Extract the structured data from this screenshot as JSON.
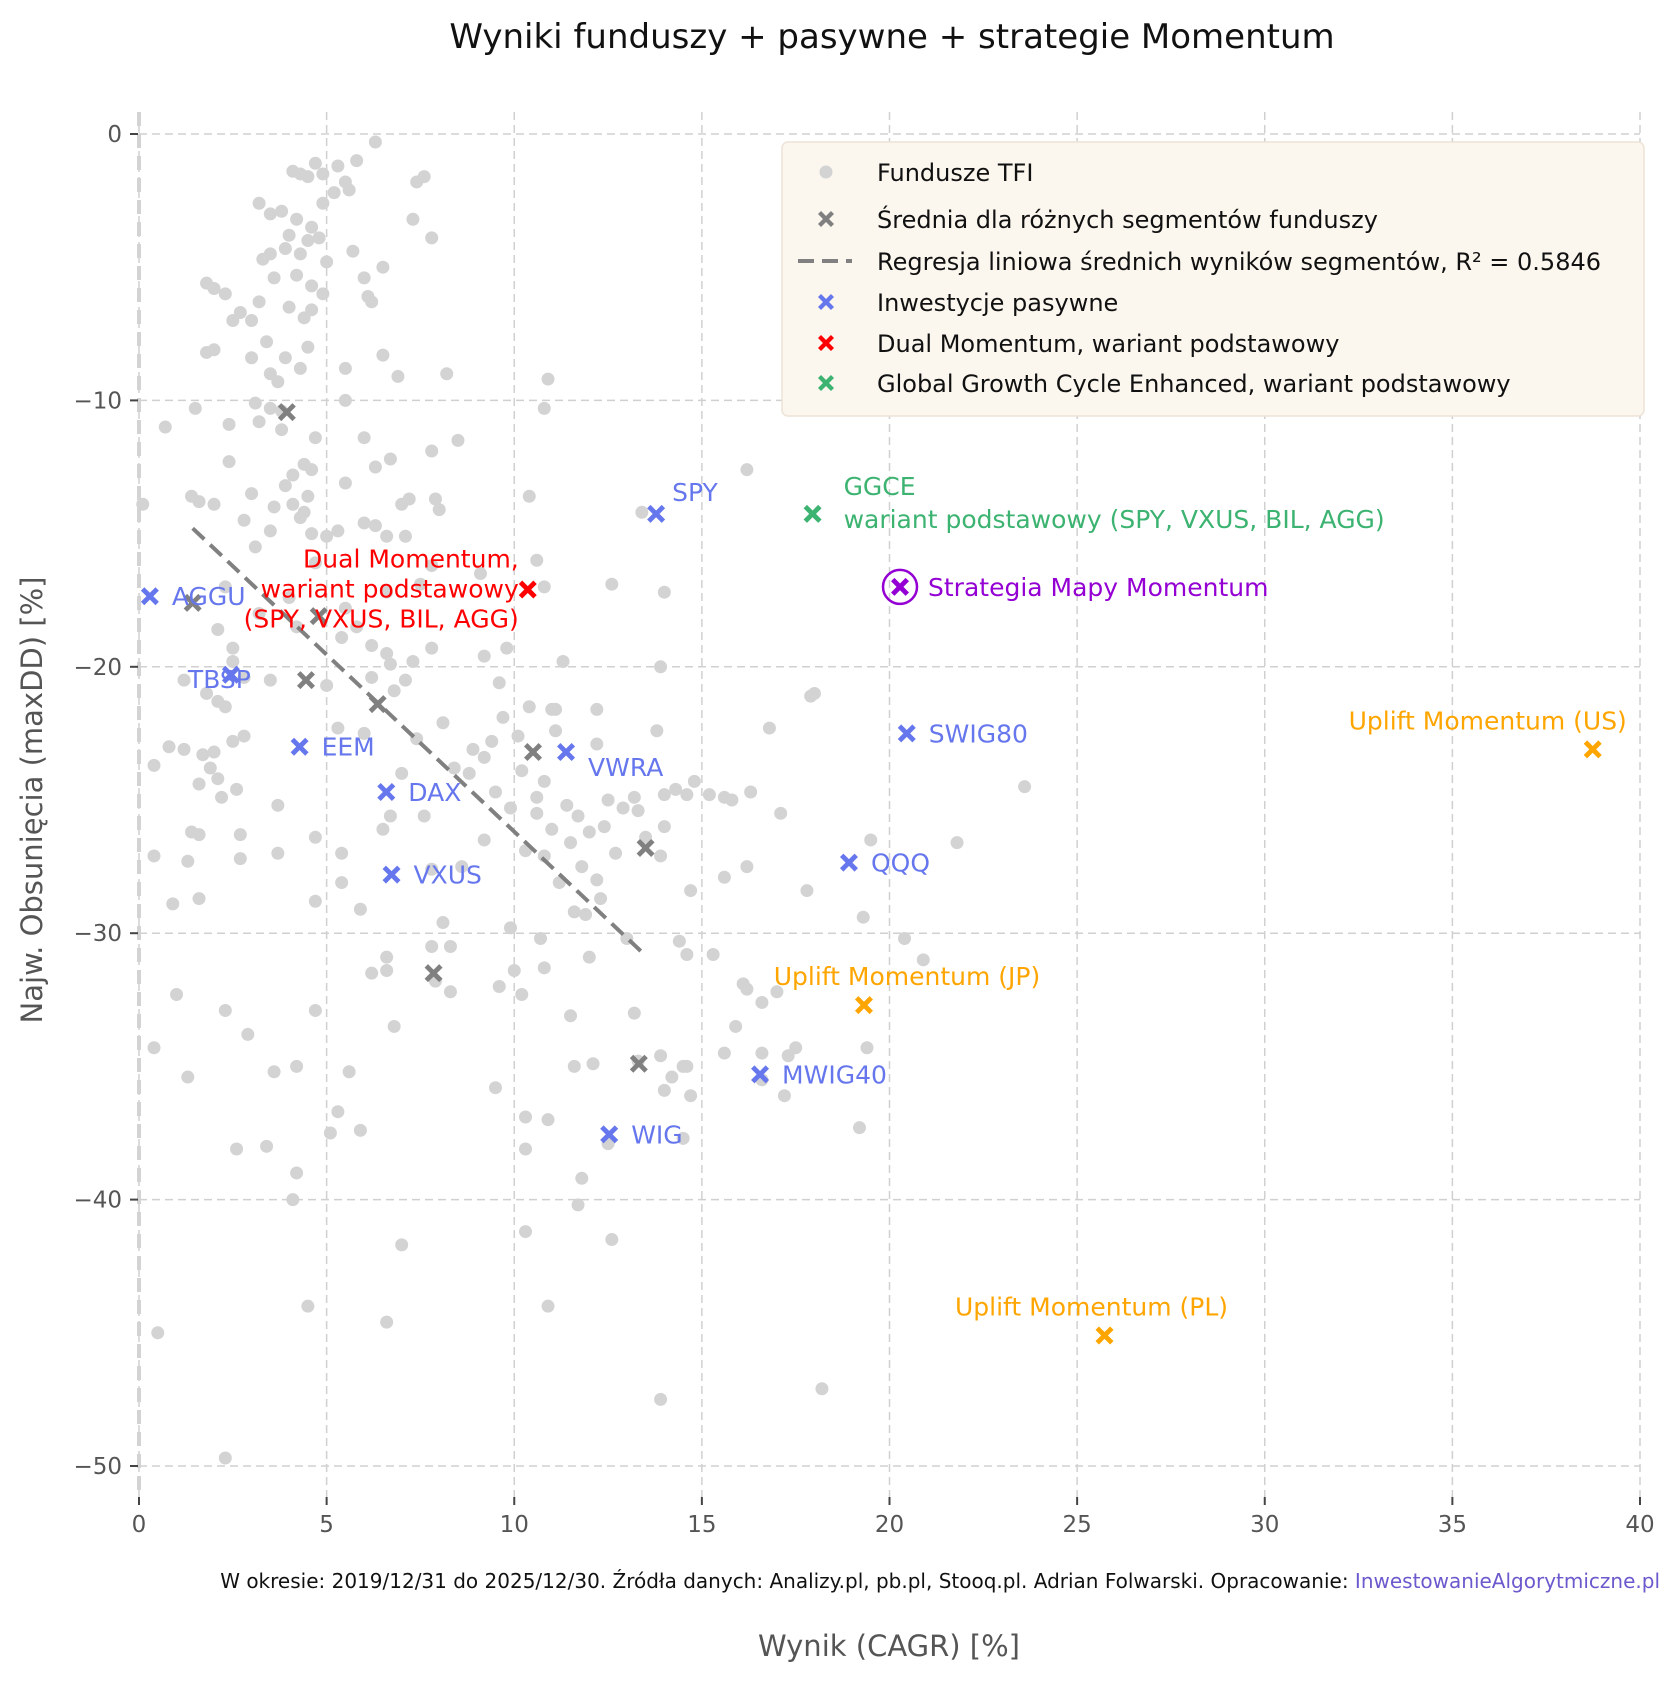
{
  "chart_data": {
    "type": "scatter",
    "title": "Wyniki funduszy + pasywne + strategie Momentum",
    "xlabel": "Wynik (CAGR) [%]",
    "ylabel": "Najw. Obsunięcia (maxDD) [%]",
    "xlim": [
      0,
      40
    ],
    "ylim": [
      -51.2,
      0.8
    ],
    "xticks": [
      "0",
      "5",
      "10",
      "15",
      "20",
      "25",
      "30",
      "35",
      "40"
    ],
    "yticks": [
      "0",
      "−10",
      "−20",
      "−30",
      "−40",
      "−50"
    ],
    "grid": true,
    "legend_placement": "top-right",
    "footer": {
      "text": "W okresie: 2019/12/31 do 2025/12/30. Źródła danych: Analizy.pl, pb.pl, Stooq.pl. Adrian Folwarski. Opracowanie: ",
      "link": "InwestowanieAlgorytmiczne.pl"
    },
    "legend": [
      {
        "label": "Fundusze TFI",
        "marker": "circle",
        "color": "#d3d3d3"
      },
      {
        "label": "Średnia dla różnych segmentów funduszy",
        "marker": "x",
        "color": "#808080"
      },
      {
        "label": "Regresja liniowa średnich wyników segmentów, R² = 0.5846",
        "marker": "dash",
        "color": "#808080"
      },
      {
        "label": "Inwestycje pasywne",
        "marker": "x",
        "color": "#6677ee"
      },
      {
        "label": "Dual Momentum, wariant podstawowy",
        "marker": "x",
        "color": "#ff0000"
      },
      {
        "label": "Global Growth Cycle Enhanced, wariant podstawowy",
        "marker": "x",
        "color": "#3cb371"
      }
    ],
    "colors": {
      "tfi": "#d3d3d3",
      "segment": "#808080",
      "passive": "#6677ee",
      "dual": "#ff0000",
      "ggce": "#3cb371",
      "mapy": "#9400d3",
      "uplift": "#ffa500"
    },
    "regression": {
      "x": [
        1.43,
        13.47
      ],
      "y": [
        -14.8,
        -30.8
      ]
    },
    "segments": [
      [
        3.94,
        -10.44
      ],
      [
        1.43,
        -17.6
      ],
      [
        4.79,
        -18.1
      ],
      [
        4.45,
        -20.5
      ],
      [
        6.36,
        -21.4
      ],
      [
        10.5,
        -23.2
      ],
      [
        13.5,
        -26.8
      ],
      [
        7.85,
        -31.5
      ],
      [
        13.32,
        -34.9
      ]
    ],
    "passive": [
      {
        "label": "AGGU",
        "x": 0.29,
        "y": -17.35
      },
      {
        "label": "TBSP",
        "x": 2.45,
        "y": -20.3
      },
      {
        "label": "EEM",
        "x": 4.28,
        "y": -23.0
      },
      {
        "label": "DAX",
        "x": 6.59,
        "y": -24.7
      },
      {
        "label": "VXUS",
        "x": 6.73,
        "y": -27.8
      },
      {
        "label": "SPY",
        "x": 13.78,
        "y": -14.26
      },
      {
        "label": "VWRA",
        "x": 11.38,
        "y": -23.2
      },
      {
        "label": "SWIG80",
        "x": 20.46,
        "y": -22.5
      },
      {
        "label": "QQQ",
        "x": 18.92,
        "y": -27.35
      },
      {
        "label": "MWIG40",
        "x": 16.55,
        "y": -35.3
      },
      {
        "label": "WIG",
        "x": 12.53,
        "y": -37.55
      }
    ],
    "dual_momentum": {
      "lines": [
        "Dual Momentum,",
        "wariant podstawowy",
        "(SPY, VXUS, BIL, AGG)"
      ],
      "x": 10.36,
      "y": -17.1
    },
    "ggce": {
      "lines": [
        "GGCE",
        "wariant podstawowy (SPY, VXUS, BIL, AGG)"
      ],
      "x": 17.95,
      "y": -14.26
    },
    "mapy": {
      "label": "Strategia Mapy Momentum",
      "x": 20.28,
      "y": -17.0
    },
    "uplift": [
      {
        "label": "Uplift Momentum (US)",
        "x": 38.74,
        "y": -23.1
      },
      {
        "label": "Uplift Momentum (JP)",
        "x": 19.32,
        "y": -32.7
      },
      {
        "label": "Uplift Momentum (PL)",
        "x": 25.73,
        "y": -45.1
      }
    ],
    "tfi": [
      [
        3.2,
        -2.6
      ],
      [
        3.5,
        -3
      ],
      [
        3.8,
        -2.9
      ],
      [
        4.1,
        -1.4
      ],
      [
        4.3,
        -1.5
      ],
      [
        4.5,
        -1.6
      ],
      [
        4.7,
        -1.1
      ],
      [
        4.9,
        -1.5
      ],
      [
        5.3,
        -1.2
      ],
      [
        5.5,
        -1.8
      ],
      [
        5.2,
        -2.2
      ],
      [
        5.8,
        -1
      ],
      [
        5.6,
        -2.1
      ],
      [
        6.3,
        -0.3
      ],
      [
        7.4,
        -1.8
      ],
      [
        7.6,
        -1.6
      ],
      [
        4.2,
        -3.2
      ],
      [
        4.6,
        -3.5
      ],
      [
        4.9,
        -2.6
      ],
      [
        4.0,
        -3.8
      ],
      [
        4.5,
        -4
      ],
      [
        4.8,
        -3.9
      ],
      [
        4.3,
        -4.5
      ],
      [
        3.9,
        -4.3
      ],
      [
        3.5,
        -4.5
      ],
      [
        3.3,
        -4.7
      ],
      [
        5.0,
        -4.8
      ],
      [
        5.7,
        -4.4
      ],
      [
        6.5,
        -5
      ],
      [
        7.3,
        -3.2
      ],
      [
        7.8,
        -3.9
      ],
      [
        3.6,
        -5.4
      ],
      [
        4.2,
        -5.3
      ],
      [
        4.6,
        -5.7
      ],
      [
        4.9,
        -6
      ],
      [
        4.0,
        -6.5
      ],
      [
        3.2,
        -6.3
      ],
      [
        2.7,
        -6.7
      ],
      [
        3.0,
        -7
      ],
      [
        2.5,
        -7
      ],
      [
        3.4,
        -7.8
      ],
      [
        3.9,
        -8.4
      ],
      [
        4.4,
        -6.9
      ],
      [
        4.6,
        -6.6
      ],
      [
        1.8,
        -5.6
      ],
      [
        2.0,
        -5.8
      ],
      [
        2.3,
        -6
      ],
      [
        2.0,
        -8.1
      ],
      [
        1.8,
        -8.2
      ],
      [
        3.0,
        -8.4
      ],
      [
        3.5,
        -9
      ],
      [
        3.7,
        -9.3
      ],
      [
        4.3,
        -8.8
      ],
      [
        4.5,
        -8.0
      ],
      [
        5.5,
        -8.8
      ],
      [
        5.5,
        -10
      ],
      [
        6.1,
        -6.1
      ],
      [
        6.2,
        -6.3
      ],
      [
        6.0,
        -5.4
      ],
      [
        6.5,
        -8.3
      ],
      [
        6.9,
        -9.1
      ],
      [
        8.2,
        -9.0
      ],
      [
        10.9,
        -9.2
      ],
      [
        10.8,
        -10.3
      ],
      [
        3.1,
        -10.1
      ],
      [
        3.5,
        -10.3
      ],
      [
        3.8,
        -10.4
      ],
      [
        3.8,
        -11.1
      ],
      [
        1.5,
        -10.3
      ],
      [
        0.7,
        -11
      ],
      [
        2.4,
        -10.9
      ],
      [
        3.2,
        -10.8
      ],
      [
        4.7,
        -11.4
      ],
      [
        6.0,
        -11.4
      ],
      [
        7.8,
        -11.9
      ],
      [
        8.5,
        -11.5
      ],
      [
        2.4,
        -12.3
      ],
      [
        4.1,
        -12.8
      ],
      [
        4.4,
        -12.4
      ],
      [
        4.6,
        -12.6
      ],
      [
        6.3,
        -12.5
      ],
      [
        6.7,
        -12.2
      ],
      [
        5.5,
        -13.1
      ],
      [
        3.9,
        -13.2
      ],
      [
        3.0,
        -13.5
      ],
      [
        2.0,
        -13.9
      ],
      [
        1.4,
        -13.6
      ],
      [
        1.6,
        -13.8
      ],
      [
        0.1,
        -13.9
      ],
      [
        3.6,
        -14
      ],
      [
        4.1,
        -13.9
      ],
      [
        4.5,
        -13.6
      ],
      [
        4.4,
        -14.2
      ],
      [
        4.3,
        -14.4
      ],
      [
        6.0,
        -14.6
      ],
      [
        7.0,
        -13.9
      ],
      [
        7.2,
        -13.7
      ],
      [
        7.9,
        -13.7
      ],
      [
        8.0,
        -14.1
      ],
      [
        10.4,
        -13.6
      ],
      [
        16.2,
        -12.6
      ],
      [
        13.4,
        -14.2
      ],
      [
        2.8,
        -14.5
      ],
      [
        3.5,
        -14.9
      ],
      [
        4.6,
        -15
      ],
      [
        5.3,
        -14.9
      ],
      [
        6.3,
        -14.7
      ],
      [
        6.6,
        -15.1
      ],
      [
        7.1,
        -15.1
      ],
      [
        5.0,
        -15.1
      ],
      [
        3.1,
        -15.5
      ],
      [
        4.7,
        -16.1
      ],
      [
        9.1,
        -16.5
      ],
      [
        10.6,
        -16
      ],
      [
        12.6,
        -16.9
      ],
      [
        14.0,
        -17.2
      ],
      [
        10.8,
        -17
      ],
      [
        2.3,
        -17
      ],
      [
        4.0,
        -17.4
      ],
      [
        5.5,
        -17.8
      ],
      [
        6.6,
        -17.2
      ],
      [
        7.5,
        -16.9
      ],
      [
        7.8,
        -16.2
      ],
      [
        2.1,
        -18.6
      ],
      [
        3.2,
        -18
      ],
      [
        4.2,
        -18.5
      ],
      [
        5.4,
        -18.9
      ],
      [
        5.8,
        -18.5
      ],
      [
        6.2,
        -19.2
      ],
      [
        6.6,
        -19.5
      ],
      [
        6.7,
        -19.9
      ],
      [
        7.3,
        -19.8
      ],
      [
        7.8,
        -19.3
      ],
      [
        9.2,
        -19.6
      ],
      [
        9.8,
        -19.3
      ],
      [
        11.3,
        -19.8
      ],
      [
        2.5,
        -19.3
      ],
      [
        2.5,
        -19.8
      ],
      [
        1.2,
        -20.5
      ],
      [
        1.8,
        -21
      ],
      [
        2.1,
        -21.3
      ],
      [
        2.3,
        -21.5
      ],
      [
        2.8,
        -20.4
      ],
      [
        3.5,
        -20.5
      ],
      [
        5.0,
        -20.7
      ],
      [
        6.2,
        -20.4
      ],
      [
        6.8,
        -20.9
      ],
      [
        7.1,
        -20.5
      ],
      [
        9.6,
        -20.6
      ],
      [
        13.9,
        -20
      ],
      [
        10.4,
        -21.5
      ],
      [
        11.1,
        -21.6
      ],
      [
        12.2,
        -21.6
      ],
      [
        1.2,
        -23.1
      ],
      [
        0.8,
        -23
      ],
      [
        0.4,
        -23.7
      ],
      [
        1.7,
        -23.3
      ],
      [
        2.0,
        -23.2
      ],
      [
        2.5,
        -22.8
      ],
      [
        2.8,
        -22.6
      ],
      [
        1.9,
        -23.8
      ],
      [
        2.1,
        -24.2
      ],
      [
        2.2,
        -24.9
      ],
      [
        1.6,
        -24.4
      ],
      [
        2.6,
        -24.6
      ],
      [
        5.3,
        -22.3
      ],
      [
        6.0,
        -22.5
      ],
      [
        7.4,
        -22.7
      ],
      [
        8.1,
        -22.1
      ],
      [
        8.9,
        -23.1
      ],
      [
        9.2,
        -23.4
      ],
      [
        9.4,
        -22.8
      ],
      [
        9.7,
        -21.9
      ],
      [
        10.1,
        -22.6
      ],
      [
        10.2,
        -23.9
      ],
      [
        10.6,
        -24.9
      ],
      [
        10.8,
        -24.3
      ],
      [
        11.1,
        -22.4
      ],
      [
        11.0,
        -21.6
      ],
      [
        11.7,
        -25.6
      ],
      [
        12.2,
        -22.9
      ],
      [
        12.9,
        -25.3
      ],
      [
        13.2,
        -24.9
      ],
      [
        13.8,
        -22.4
      ],
      [
        14.0,
        -24.8
      ],
      [
        14.3,
        -24.6
      ],
      [
        14.6,
        -24.8
      ],
      [
        14.8,
        -24.3
      ],
      [
        15.2,
        -24.8
      ],
      [
        15.6,
        -24.9
      ],
      [
        15.8,
        -25
      ],
      [
        16.3,
        -24.7
      ],
      [
        16.8,
        -22.3
      ],
      [
        17.9,
        -21.1
      ],
      [
        18.0,
        -21
      ],
      [
        17.1,
        -25.5
      ],
      [
        21.8,
        -26.6
      ],
      [
        23.6,
        -24.5
      ],
      [
        19.5,
        -26.5
      ],
      [
        11.4,
        -25.2
      ],
      [
        10.6,
        -25.5
      ],
      [
        11.0,
        -26.1
      ],
      [
        11.5,
        -26.6
      ],
      [
        12.0,
        -26.2
      ],
      [
        12.4,
        -26.0
      ],
      [
        12.7,
        -27.0
      ],
      [
        13.3,
        -25.4
      ],
      [
        12.5,
        -25.0
      ],
      [
        10.3,
        -26.9
      ],
      [
        10.8,
        -27.1
      ],
      [
        11.2,
        -28.1
      ],
      [
        11.6,
        -29.2
      ],
      [
        11.9,
        -29.3
      ],
      [
        12.3,
        -28.7
      ],
      [
        12.2,
        -28.0
      ],
      [
        11.8,
        -27.5
      ],
      [
        13.0,
        -30.2
      ],
      [
        13.9,
        -27.1
      ],
      [
        14.7,
        -28.4
      ],
      [
        15.6,
        -27.9
      ],
      [
        16.2,
        -27.5
      ],
      [
        17.8,
        -28.4
      ],
      [
        3.7,
        -25.2
      ],
      [
        4.7,
        -26.4
      ],
      [
        6.5,
        -26.1
      ],
      [
        6.7,
        -25.6
      ],
      [
        5.4,
        -27.0
      ],
      [
        5.4,
        -28.1
      ],
      [
        3.7,
        -27.0
      ],
      [
        2.7,
        -26.3
      ],
      [
        1.3,
        -27.3
      ],
      [
        0.4,
        -27.1
      ],
      [
        1.4,
        -26.2
      ],
      [
        1.6,
        -26.3
      ],
      [
        2.7,
        -27.2
      ],
      [
        7.8,
        -27.6
      ],
      [
        8.3,
        -30.5
      ],
      [
        8.1,
        -29.6
      ],
      [
        7.8,
        -30.5
      ],
      [
        4.7,
        -28.8
      ],
      [
        1.6,
        -28.7
      ],
      [
        0.9,
        -28.9
      ],
      [
        5.9,
        -29.1
      ],
      [
        9.9,
        -29.8
      ],
      [
        10.7,
        -30.2
      ],
      [
        6.6,
        -30.9
      ],
      [
        6.2,
        -31.5
      ],
      [
        6.6,
        -31.4
      ],
      [
        7.9,
        -31.8
      ],
      [
        8.3,
        -32.2
      ],
      [
        9.6,
        -32.0
      ],
      [
        10.0,
        -31.4
      ],
      [
        10.2,
        -32.3
      ],
      [
        10.8,
        -31.3
      ],
      [
        12.0,
        -30.9
      ],
      [
        14.4,
        -30.3
      ],
      [
        14.6,
        -30.8
      ],
      [
        15.3,
        -30.8
      ],
      [
        16.1,
        -31.9
      ],
      [
        16.2,
        -32.1
      ],
      [
        16.6,
        -32.6
      ],
      [
        17.0,
        -32.2
      ],
      [
        19.3,
        -29.4
      ],
      [
        20.4,
        -30.2
      ],
      [
        20.9,
        -31.0
      ],
      [
        1.0,
        -32.3
      ],
      [
        2.3,
        -32.9
      ],
      [
        4.7,
        -32.9
      ],
      [
        6.8,
        -33.5
      ],
      [
        2.9,
        -33.8
      ],
      [
        0.4,
        -34.3
      ],
      [
        13.2,
        -33.0
      ],
      [
        11.5,
        -33.1
      ],
      [
        15.9,
        -33.5
      ],
      [
        17.3,
        -34.6
      ],
      [
        17.5,
        -34.3
      ],
      [
        16.6,
        -34.5
      ],
      [
        19.4,
        -34.3
      ],
      [
        15.6,
        -34.5
      ],
      [
        14.2,
        -35.4
      ],
      [
        14.5,
        -35.0
      ],
      [
        14.0,
        -35.9
      ],
      [
        14.7,
        -36.1
      ],
      [
        12.1,
        -34.9
      ],
      [
        11.6,
        -35.0
      ],
      [
        13.3,
        -34.8
      ],
      [
        13.9,
        -34.6
      ],
      [
        4.2,
        -35.0
      ],
      [
        3.6,
        -35.2
      ],
      [
        5.6,
        -35.2
      ],
      [
        1.3,
        -35.4
      ],
      [
        9.5,
        -35.8
      ],
      [
        10.3,
        -36.9
      ],
      [
        10.9,
        -37.0
      ],
      [
        17.2,
        -36.1
      ],
      [
        5.3,
        -36.7
      ],
      [
        5.1,
        -37.5
      ],
      [
        5.9,
        -37.4
      ],
      [
        10.3,
        -38.1
      ],
      [
        12.5,
        -37.9
      ],
      [
        14.5,
        -37.7
      ],
      [
        2.6,
        -38.1
      ],
      [
        3.4,
        -38.0
      ],
      [
        4.2,
        -39.0
      ],
      [
        11.8,
        -39.2
      ],
      [
        11.7,
        -40.2
      ],
      [
        4.1,
        -40.0
      ],
      [
        10.3,
        -41.2
      ],
      [
        12.6,
        -41.5
      ],
      [
        7.0,
        -41.7
      ],
      [
        4.5,
        -44.0
      ],
      [
        10.9,
        -44.0
      ],
      [
        6.6,
        -44.6
      ],
      [
        0.5,
        -45.0
      ],
      [
        18.2,
        -47.1
      ],
      [
        13.9,
        -47.5
      ],
      [
        2.3,
        -49.7
      ],
      [
        19.2,
        -37.3
      ],
      [
        8.6,
        -27.5
      ],
      [
        9.2,
        -26.5
      ],
      [
        14.0,
        -26.0
      ],
      [
        13.5,
        -26.4
      ],
      [
        7.0,
        -24.0
      ],
      [
        8.8,
        -24.0
      ],
      [
        8.4,
        -23.8
      ],
      [
        7.6,
        -25.6
      ],
      [
        9.5,
        -24.7
      ],
      [
        9.9,
        -25.3
      ],
      [
        14.6,
        -35.0
      ],
      [
        16.6,
        -35.5
      ]
    ]
  }
}
